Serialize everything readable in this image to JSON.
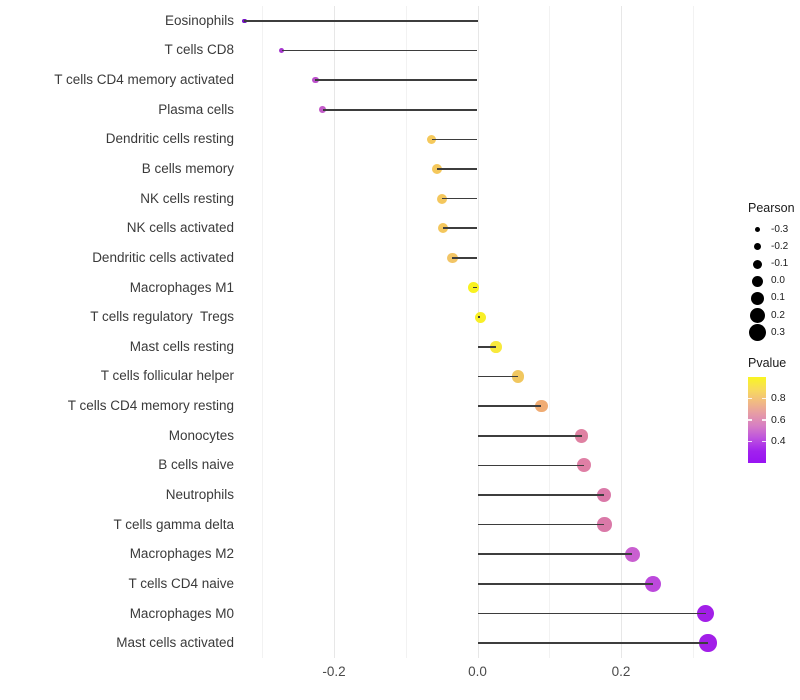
{
  "figure": {
    "background": "#ffffff",
    "panel": {
      "grid_major_color": "#e7e7e7",
      "grid_minor_color": "#f2f2f2",
      "stem_color": "#3d3d3d"
    },
    "x_axis": {
      "tick_labels": [
        "-0.2",
        "0.0",
        "0.2"
      ],
      "tick_values": [
        -0.2,
        0.0,
        0.2
      ],
      "gridline_values": [
        -0.3,
        -0.2,
        -0.1,
        0.0,
        0.1,
        0.2,
        0.3
      ],
      "major_values": [
        -0.2,
        0.0,
        0.2
      ]
    },
    "legend_pearson": {
      "title": "Pearson",
      "entries": [
        {
          "label": "-0.3",
          "value": -0.3
        },
        {
          "label": "-0.2",
          "value": -0.2
        },
        {
          "label": "-0.1",
          "value": -0.1
        },
        {
          "label": "0.0",
          "value": 0.0
        },
        {
          "label": "0.1",
          "value": 0.1
        },
        {
          "label": "0.2",
          "value": 0.2
        },
        {
          "label": "0.3",
          "value": 0.3
        }
      ],
      "dot_color": "#000000"
    },
    "legend_pvalue": {
      "title": "Pvalue",
      "tick_labels": [
        "0.8",
        "0.6",
        "0.4"
      ],
      "tick_values": [
        0.8,
        0.6,
        0.4
      ],
      "domain": [
        0.2,
        1.0
      ],
      "gradient_top_to_bottom": [
        "#F9F521",
        "#F8DC5A",
        "#F1BA83",
        "#E69BA6",
        "#D67EC4",
        "#BE54DE",
        "#A122EE",
        "#9813F2"
      ]
    }
  },
  "chart_data": {
    "type": "scatter",
    "subtype": "lollipop",
    "title": "",
    "xlabel": "",
    "ylabel": "",
    "xlim": [
      -0.34,
      0.355
    ],
    "grid": true,
    "legend_position": "right",
    "categories": [
      "Eosinophils",
      "T cells CD8",
      "T cells CD4 memory activated",
      "Plasma cells",
      "Dendritic cells resting",
      "B cells memory",
      "NK cells resting",
      "NK cells activated",
      "Dendritic cells activated",
      "Macrophages M1",
      "T cells regulatory  Tregs",
      "Mast cells resting",
      "T cells follicular helper",
      "T cells CD4 memory resting",
      "Monocytes",
      "B cells naive",
      "Neutrophils",
      "T cells gamma delta",
      "Macrophages M2",
      "T cells CD4 naive",
      "Macrophages M0",
      "Mast cells activated"
    ],
    "series": [
      {
        "name": "Pearson",
        "values": [
          -0.325,
          -0.273,
          -0.226,
          -0.216,
          -0.064,
          -0.057,
          -0.049,
          -0.048,
          -0.035,
          -0.006,
          0.004,
          0.026,
          0.057,
          0.089,
          0.145,
          0.149,
          0.176,
          0.177,
          0.216,
          0.245,
          0.318,
          0.321
        ]
      },
      {
        "name": "Pvalue",
        "values": [
          0.1,
          0.33,
          0.4,
          0.42,
          0.78,
          0.78,
          0.77,
          0.77,
          0.76,
          0.97,
          0.96,
          0.92,
          0.77,
          0.68,
          0.52,
          0.51,
          0.48,
          0.48,
          0.4,
          0.34,
          0.22,
          0.21
        ]
      }
    ],
    "point_colors": [
      "#7412C4",
      "#A637CE",
      "#BC50CC",
      "#C35CC9",
      "#F5C95C",
      "#F5C85C",
      "#F4C75D",
      "#F4C75D",
      "#F2C566",
      "#F9F221",
      "#F8EF27",
      "#F8E93C",
      "#F1C75F",
      "#F0AC73",
      "#DF81A2",
      "#DF7FA5",
      "#DA79A8",
      "#DA79A8",
      "#C95FD0",
      "#BC49DC",
      "#A21FE8",
      "#A21FE8"
    ]
  }
}
